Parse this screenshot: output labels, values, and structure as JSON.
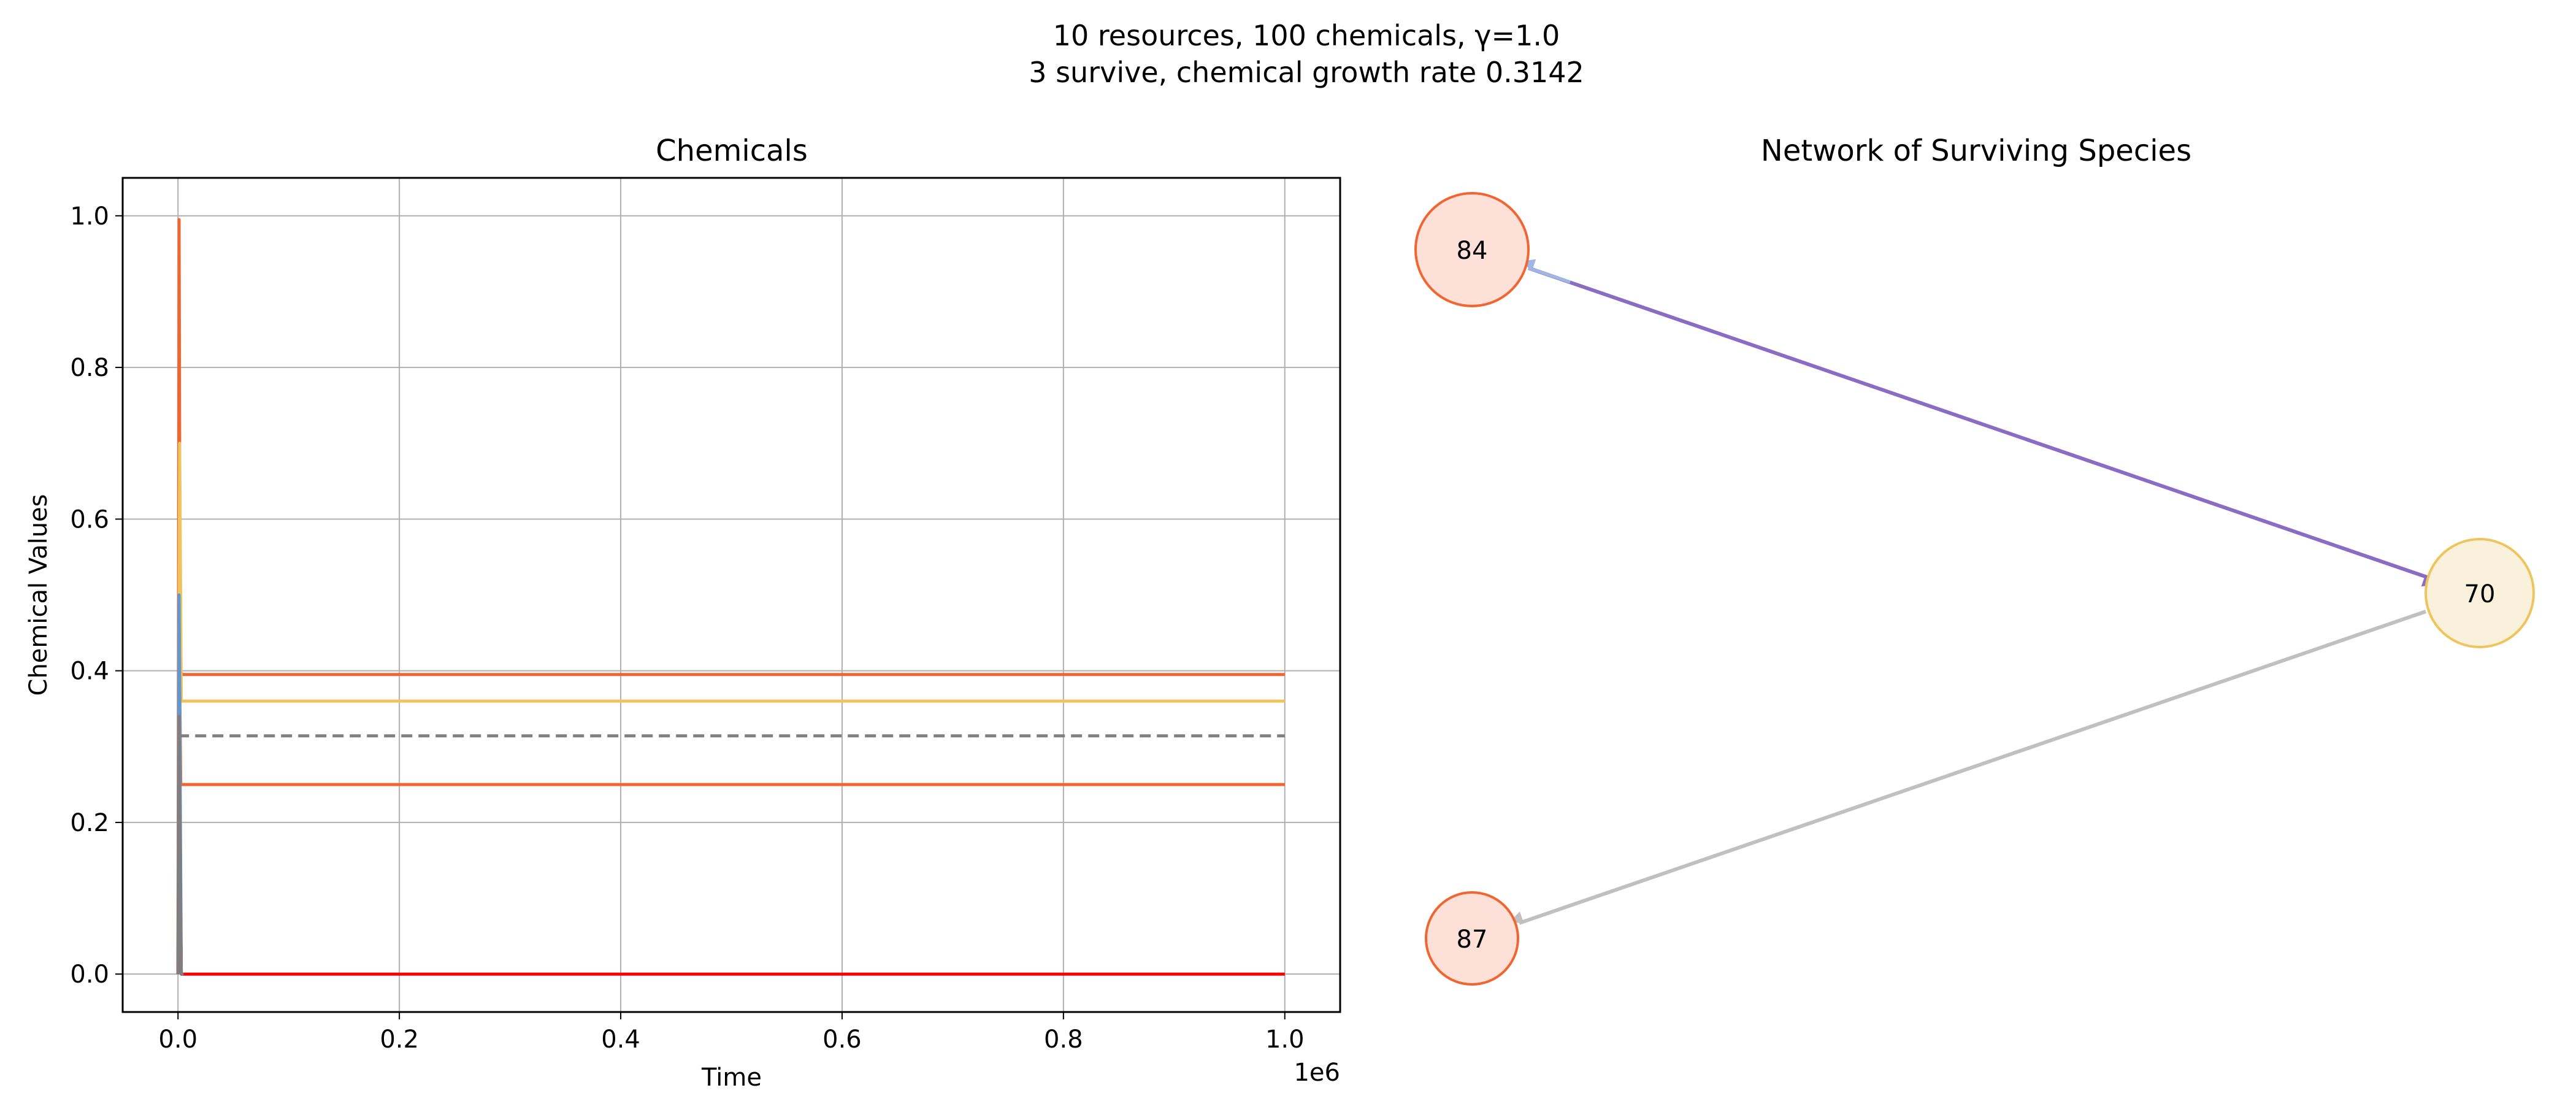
{
  "figure": {
    "title_line1": "10 resources, 100 chemicals, γ=1.0",
    "title_line2": "3 survive, chemical growth rate 0.3142"
  },
  "chart_data": [
    {
      "type": "line",
      "title": "Chemicals",
      "xlabel": "Time",
      "ylabel": "Chemical Values",
      "x_offset_text": "1e6",
      "xlim": [
        -0.05,
        1.05
      ],
      "ylim": [
        -0.05,
        1.05
      ],
      "x_unit_multiplier": 1000000,
      "xticks": [
        0.0,
        0.2,
        0.4,
        0.6,
        0.8,
        1.0
      ],
      "xtick_labels": [
        "0.0",
        "0.2",
        "0.4",
        "0.6",
        "0.8",
        "1.0"
      ],
      "yticks": [
        0.0,
        0.2,
        0.4,
        0.6,
        0.8,
        1.0
      ],
      "ytick_labels": [
        "0.0",
        "0.2",
        "0.4",
        "0.6",
        "0.8",
        "1.0"
      ],
      "grid": true,
      "series": [
        {
          "color": "#f26430",
          "points": [
            [
              0,
              0.02
            ],
            [
              0.001,
              0.995
            ],
            [
              0.002,
              0.4
            ],
            [
              0.004,
              0.395
            ],
            [
              1.0,
              0.395
            ]
          ]
        },
        {
          "color": "#f0c45c",
          "points": [
            [
              0,
              0.0
            ],
            [
              0.0015,
              0.7
            ],
            [
              0.003,
              0.36
            ],
            [
              0.005,
              0.36
            ],
            [
              1.0,
              0.36
            ]
          ]
        },
        {
          "color": "#f26430",
          "points": [
            [
              0,
              0.0
            ],
            [
              0.001,
              0.46
            ],
            [
              0.0025,
              0.25
            ],
            [
              0.005,
              0.25
            ],
            [
              1.0,
              0.25
            ]
          ]
        },
        {
          "color": "#5b9bd5",
          "points": [
            [
              0,
              0.0
            ],
            [
              0.001,
              0.5
            ],
            [
              0.003,
              0.0
            ],
            [
              0.005,
              0.0
            ]
          ]
        },
        {
          "color": "#ff0000",
          "points": [
            [
              0,
              0.0
            ],
            [
              0.001,
              0.28
            ],
            [
              0.003,
              0.0
            ],
            [
              1.0,
              0.0
            ]
          ]
        },
        {
          "color": "#7f7f7f",
          "points": [
            [
              0,
              0.0
            ],
            [
              0.001,
              0.34
            ],
            [
              0.003,
              0.0
            ],
            [
              0.005,
              0.0
            ]
          ]
        }
      ],
      "threshold": {
        "value": 0.3142,
        "color": "#808080",
        "x_range": [
          0,
          1.0
        ]
      }
    },
    {
      "type": "network",
      "title": "Network of Surviving Species",
      "nodes": [
        {
          "id": "84",
          "fill": "#fde0d8",
          "stroke": "#f26430",
          "size": "large"
        },
        {
          "id": "70",
          "fill": "#faf1dd",
          "stroke": "#f0c45c",
          "size": "large"
        },
        {
          "id": "87",
          "fill": "#fde0d8",
          "stroke": "#f26430",
          "size": "small"
        }
      ],
      "edges": [
        {
          "from": "84",
          "to": "70",
          "color": "#8b6cc4"
        },
        {
          "from": "70",
          "to": "84",
          "color": "#9db8e6"
        },
        {
          "from": "70",
          "to": "87",
          "color": "#c0c0c0"
        }
      ]
    }
  ]
}
